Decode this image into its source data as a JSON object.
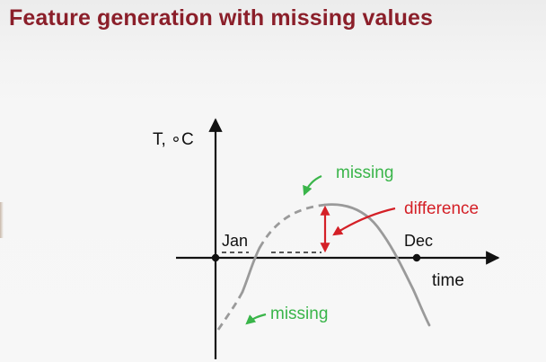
{
  "slide": {
    "title": "Feature generation with missing values"
  },
  "diagram": {
    "y_axis_label": "T, ∘C",
    "x_axis_label": "time",
    "start_month": "Jan",
    "end_month": "Dec",
    "annotation_missing_top": "missing",
    "annotation_missing_bottom": "missing",
    "annotation_difference": "difference"
  },
  "colors": {
    "title": "#8b1f2a",
    "axis": "#111111",
    "curve": "#9a9a9a",
    "missing": "#3ab54a",
    "difference": "#d42027"
  }
}
